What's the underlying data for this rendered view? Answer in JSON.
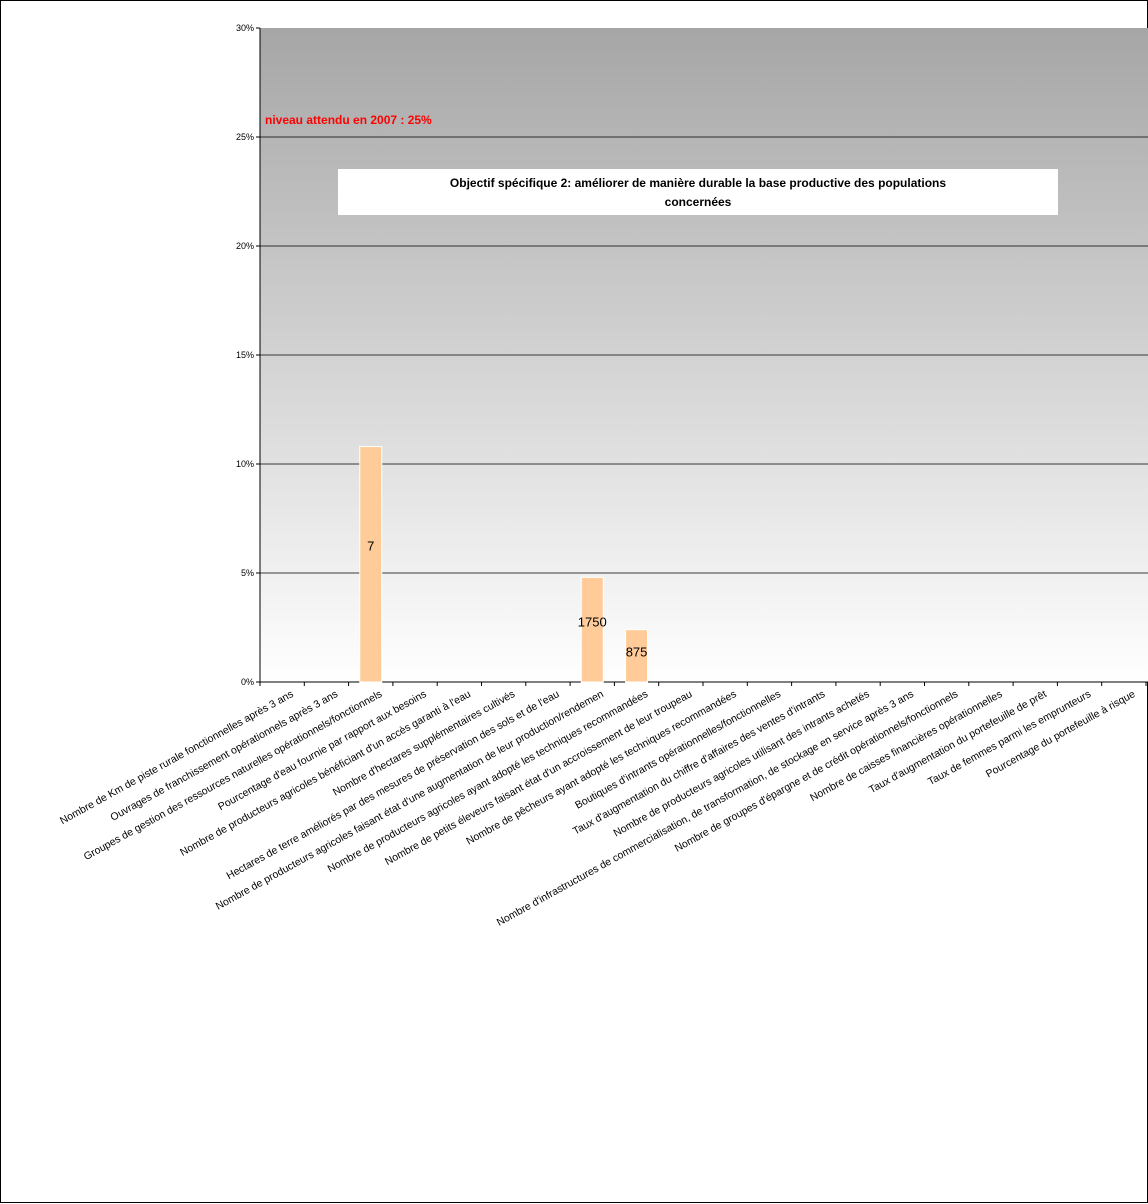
{
  "chart_data": {
    "type": "bar",
    "title": "Objectif spécifique 2: améliorer de manière durable la base productive des populations concernées",
    "title_lines": [
      "Objectif spécifique 2: améliorer de manière durable la base productive des populations",
      "concernées"
    ],
    "annotation": "niveau attendu en 2007 : 25%",
    "ylim": [
      0,
      30
    ],
    "yticks": [
      "0%",
      "5%",
      "10%",
      "15%",
      "20%",
      "25%",
      "30%"
    ],
    "grid": true,
    "legend": "none",
    "categories": [
      "Nombre de Km de piste rurale fonctionnelles après 3 ans",
      "Ouvrages de franchissement opérationnels après 3 ans",
      "Groupes de gestion des ressources naturelles opérationnels/fonctionnels",
      "Pourcentage d'eau fournie  par rapport aux besoins",
      "Nombre de producteurs agricoles bénéficiant d'un accès garanti à l'eau",
      "Nombre d'hectares supplémentaires cultivés",
      "Hectares de terre améliorés par des mesures de préservation des sols et de l'eau",
      "Nombre de producteurs agricoles faisant état d'une  augmentation de leur production/rendement",
      "Nombre de producteurs agricoles ayant adopté les techniques recommandées",
      "Nombre de petits éleveurs faisant état d'un accroissement de leur troupeau",
      "Nombre de pêcheurs ayant adopté les techniques recommandées",
      "Boutiques d'intrants opérationnelles/fonctionnelles",
      "Taux d'augmentation du chiffre d'affaires des ventes d'intrants",
      "Nombre de producteurs agricoles utilisant des intrants achetés",
      "Nombre d'infrastructures de commercialisation, de transformation, de stockage en service après 3 ans",
      "Nombre de groupes d'épargne et de crédit opérationnels/fonctionnels",
      "Nombre de caisses financières opérationnelles",
      "Taux d'augmentation du portefeuille de prêt",
      "Taux de femmes parmi les emprunteurs",
      "Pourcentage du portefeuille à risque"
    ],
    "display_categories": [
      "Nombre de Km de piste rurale fonctionnelles après 3 ans",
      "Ouvrages de franchissement opérationnels après 3 ans",
      "Groupes de gestion des ressources naturelles opérationnels/fonctionnels",
      "Pourcentage d'eau fournie  par rapport aux besoins",
      "Nombre de producteurs agricoles bénéficiant d'un accès garanti à l'eau",
      "Nombre d'hectares supplémentaires cultivés",
      "Hectares de terre améliorés par des mesures de préservation des sols et de l'eau",
      "Nombre de producteurs agricoles faisant état d'une  augmentation de leur production/rendemen",
      "Nombre de producteurs agricoles ayant adopté les techniques recommandées",
      "Nombre de petits éleveurs faisant état d'un accroissement de leur troupeau",
      "Nombre de pêcheurs ayant adopté les techniques recommandées",
      "Boutiques d'intrants opérationnelles/fonctionnelles",
      "Taux d'augmentation du chiffre d'affaires des ventes d'intrants",
      "Nombre de producteurs agricoles utilisant des intrants achetés",
      "Nombre d'infrastructures de commercialisation, de transformation, de stockage en service après 3 ans",
      "Nombre de groupes d'épargne et de crédit opérationnels/fonctionnels",
      "Nombre de caisses financières opérationnelles",
      "Taux d'augmentation du portefeuille de prêt",
      "Taux de femmes parmi les emprunteurs",
      "Pourcentage du portefeuille à risque"
    ],
    "values": [
      0,
      0,
      10.8,
      0,
      0,
      0,
      0,
      4.8,
      2.4,
      0,
      0,
      0,
      0,
      0,
      0,
      0,
      0,
      0,
      0,
      0
    ],
    "data_labels": [
      "",
      "",
      "7",
      "",
      "",
      "",
      "",
      "1750",
      "875",
      "",
      "",
      "",
      "",
      "",
      "",
      "",
      "",
      "",
      "",
      ""
    ],
    "colors": {
      "bar": "#ffcc99",
      "bar_edge": "#ffffff",
      "plot_top": "#a6a6a6",
      "plot_bottom": "#ffffff",
      "grid": "#000000",
      "annotation": "#ff0000",
      "title_box": "#ffffff"
    }
  }
}
